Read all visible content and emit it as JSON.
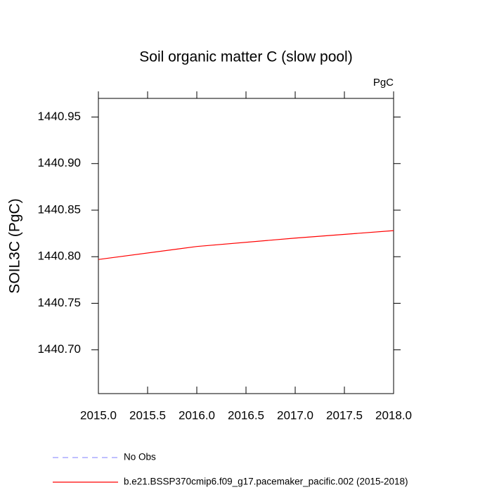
{
  "chart_data": {
    "type": "line",
    "title": "Soil organic matter C (slow pool)",
    "units": "PgC",
    "y_label": "SOIL3C  (PgC)",
    "x": [
      2015,
      2016,
      2017,
      2018
    ],
    "series": [
      {
        "name": "No Obs",
        "color": "#9999ff",
        "dashed": true,
        "values": [
          null,
          null,
          null,
          null
        ]
      },
      {
        "name": "b.e21.BSSP370cmip6.f09_g17.pacemaker_pacific.002 (2015-2018)",
        "color": "#ff0000",
        "dashed": false,
        "values": [
          1440.797,
          1440.811,
          1440.82,
          1440.828
        ]
      }
    ],
    "xlim": [
      2015,
      2018
    ],
    "xticks": [
      {
        "value": 2015,
        "label": "2015.0"
      },
      2015.5,
      {
        "value": 2016,
        "label": "2016.0"
      },
      2016.5,
      {
        "value": 2017,
        "label": "2017.0"
      },
      2017.5,
      {
        "value": 2018,
        "label": "2018.0"
      }
    ],
    "ylim": [
      1440.653,
      1440.97
    ],
    "yticks": [
      {
        "value": 1440.7,
        "label": "1440.70"
      },
      1440.75,
      {
        "value": 1440.8,
        "label": "1440.80"
      },
      1440.85,
      {
        "value": 1440.9,
        "label": "1440.90"
      },
      1440.95
    ],
    "grid": false
  }
}
